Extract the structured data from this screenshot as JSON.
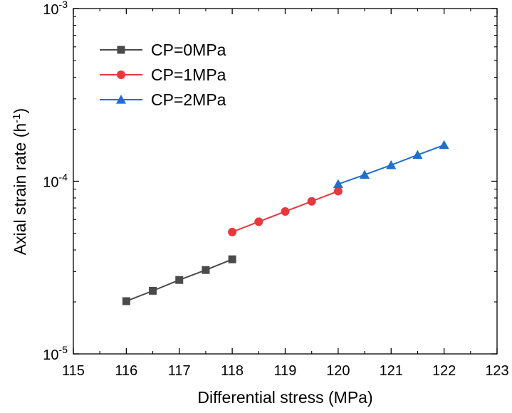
{
  "chart_data": {
    "type": "line",
    "xlabel": "Differential stress (MPa)",
    "ylabel_main": "Axial strain rate (h",
    "ylabel_sup": "-1",
    "ylabel_close": ")",
    "xlim": [
      115,
      123
    ],
    "ylim": [
      1e-05,
      0.001
    ],
    "yscale": "log",
    "x_ticks": [
      "115",
      "116",
      "117",
      "118",
      "119",
      "120",
      "121",
      "122",
      "123"
    ],
    "y_ticks": [
      {
        "value": 1e-05,
        "base": "10",
        "exp": "-5"
      },
      {
        "value": 0.0001,
        "base": "10",
        "exp": "-4"
      },
      {
        "value": 0.001,
        "base": "10",
        "exp": "-3"
      }
    ],
    "legend_position": "top-left",
    "series": [
      {
        "name": "CP=0MPa",
        "color": "#4a4a4a",
        "marker": "square",
        "x": [
          116,
          116.5,
          117,
          117.5,
          118
        ],
        "y": [
          2.02e-05,
          2.32e-05,
          2.68e-05,
          3.06e-05,
          3.53e-05
        ]
      },
      {
        "name": "CP=1MPa",
        "color": "#e8383d",
        "marker": "circle",
        "x": [
          118,
          118.5,
          119,
          119.5,
          120
        ],
        "y": [
          5.08e-05,
          5.83e-05,
          6.68e-05,
          7.65e-05,
          8.76e-05
        ]
      },
      {
        "name": "CP=2MPa",
        "color": "#1f6fcf",
        "marker": "triangle",
        "x": [
          120,
          120.5,
          121,
          121.5,
          122
        ],
        "y": [
          9.62e-05,
          0.000109,
          0.000124,
          0.000142,
          0.000162
        ]
      }
    ]
  }
}
